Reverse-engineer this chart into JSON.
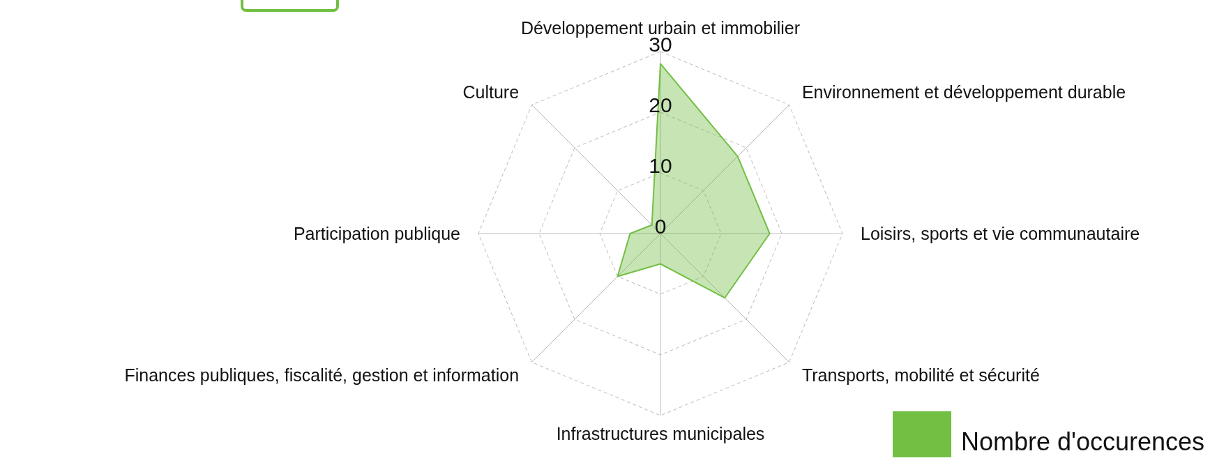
{
  "chart_data": {
    "type": "radar",
    "categories": [
      "Développement urbain et immobilier",
      "Environnement et développement durable",
      "Loisirs, sports et vie communautaire",
      "Transports, mobilité et sécurité",
      "Infrastructures municipales",
      "Finances publiques, fiscalité, gestion et information",
      "Participation publique",
      "Culture"
    ],
    "series": [
      {
        "name": "Nombre d'occurences",
        "color": "#72bf44",
        "values": [
          28,
          18,
          18,
          15,
          5,
          10,
          5,
          2
        ]
      }
    ],
    "ylim": [
      0,
      30
    ],
    "yticks": [
      0,
      10,
      20,
      30
    ],
    "grid": true,
    "legend": "bottom right",
    "marker": "none"
  }
}
